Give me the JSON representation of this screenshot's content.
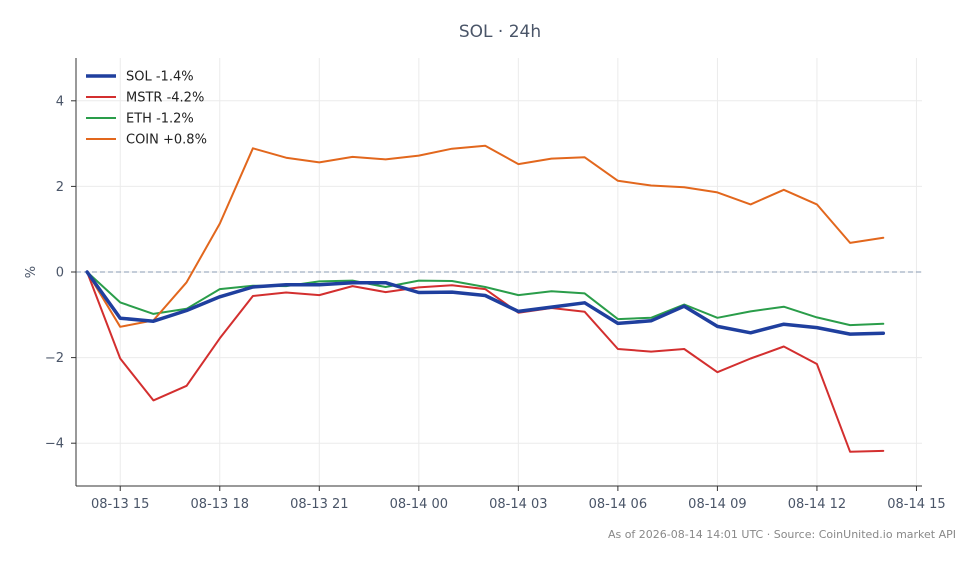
{
  "chart_data": {
    "type": "line",
    "title": "SOL · 24h",
    "xlabel": "",
    "ylabel": "%",
    "x_tick_labels": [
      "08-13 15",
      "08-13 18",
      "08-13 21",
      "08-14 00",
      "08-14 03",
      "08-14 06",
      "08-14 09",
      "08-14 12",
      "08-14 15"
    ],
    "y_ticks": [
      -4,
      -2,
      0,
      2,
      4
    ],
    "y_tick_labels": [
      "−4",
      "−2",
      "0",
      "2",
      "4"
    ],
    "ylim": [
      -5,
      5
    ],
    "xlim": [
      "2026-08-13 13:40",
      "2026-08-14 15:10"
    ],
    "x": [
      "2026-08-13 14:00",
      "2026-08-13 15:00",
      "2026-08-13 16:00",
      "2026-08-13 17:00",
      "2026-08-13 18:00",
      "2026-08-13 19:00",
      "2026-08-13 20:00",
      "2026-08-13 21:00",
      "2026-08-13 22:00",
      "2026-08-13 23:00",
      "2026-08-14 00:00",
      "2026-08-14 01:00",
      "2026-08-14 02:00",
      "2026-08-14 03:00",
      "2026-08-14 04:00",
      "2026-08-14 05:00",
      "2026-08-14 06:00",
      "2026-08-14 07:00",
      "2026-08-14 08:00",
      "2026-08-14 09:00",
      "2026-08-14 10:00",
      "2026-08-14 11:00",
      "2026-08-14 12:00",
      "2026-08-14 13:00",
      "2026-08-14 14:00"
    ],
    "grid": true,
    "legend_position": "top-left",
    "zero_line": true,
    "series": [
      {
        "name": "SOL -1.4%",
        "color": "#1f3f9e",
        "width": 3.5,
        "values": [
          0.0,
          -1.08,
          -1.15,
          -0.9,
          -0.58,
          -0.35,
          -0.3,
          -0.3,
          -0.25,
          -0.25,
          -0.48,
          -0.47,
          -0.55,
          -0.92,
          -0.82,
          -0.72,
          -1.2,
          -1.14,
          -0.8,
          -1.27,
          -1.42,
          -1.22,
          -1.3,
          -1.45,
          -1.43
        ]
      },
      {
        "name": "MSTR -4.2%",
        "color": "#d32f2f",
        "width": 2,
        "values": [
          0.0,
          -2.02,
          -3.0,
          -2.66,
          -1.55,
          -0.56,
          -0.48,
          -0.54,
          -0.33,
          -0.47,
          -0.36,
          -0.31,
          -0.4,
          -0.95,
          -0.84,
          -0.93,
          -1.8,
          -1.86,
          -1.8,
          -2.34,
          -2.02,
          -1.74,
          -2.15,
          -4.2,
          -4.18
        ]
      },
      {
        "name": "ETH -1.2%",
        "color": "#2a9d4a",
        "width": 2,
        "values": [
          0.0,
          -0.71,
          -0.98,
          -0.86,
          -0.4,
          -0.32,
          -0.33,
          -0.22,
          -0.2,
          -0.35,
          -0.2,
          -0.21,
          -0.35,
          -0.54,
          -0.45,
          -0.5,
          -1.1,
          -1.07,
          -0.76,
          -1.07,
          -0.92,
          -0.81,
          -1.06,
          -1.24,
          -1.21
        ]
      },
      {
        "name": "COIN +0.8%",
        "color": "#e2671d",
        "width": 2,
        "values": [
          0.0,
          -1.28,
          -1.13,
          -0.24,
          1.13,
          2.89,
          2.67,
          2.56,
          2.69,
          2.63,
          2.72,
          2.88,
          2.95,
          2.52,
          2.65,
          2.68,
          2.13,
          2.02,
          1.98,
          1.86,
          1.58,
          1.92,
          1.58,
          0.68,
          0.8
        ]
      }
    ]
  },
  "footer": "As of 2026-08-14 14:01 UTC · Source: CoinUnited.io market API"
}
